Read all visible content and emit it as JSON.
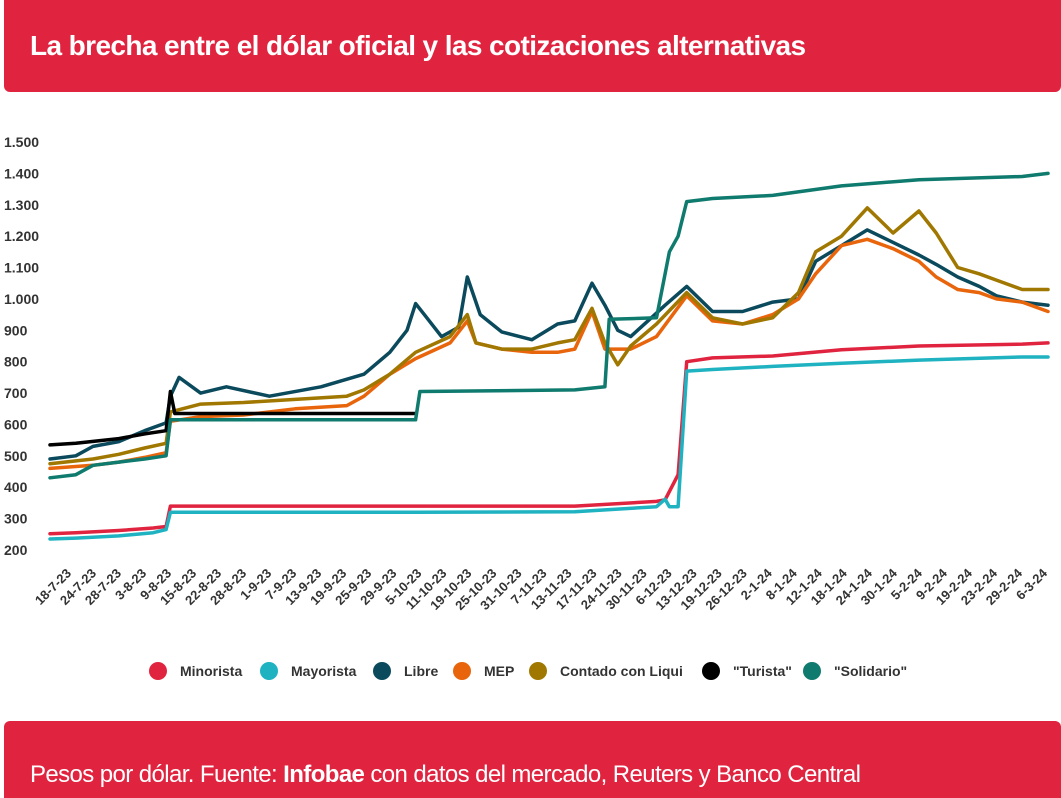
{
  "header": {
    "title": "La brecha entre el dólar oficial y las cotizaciones alternativas"
  },
  "footer": {
    "prefix": "Pesos por dólar. Fuente: ",
    "source": "Infobae",
    "suffix": " con datos del mercado, Reuters y Banco Central"
  },
  "chart_data": {
    "type": "line",
    "title": "La brecha entre el dólar oficial y las cotizaciones alternativas",
    "ylabel": "",
    "xlabel": "",
    "ylim": [
      200,
      1500
    ],
    "yticks": [
      200,
      300,
      400,
      500,
      600,
      700,
      800,
      900,
      1000,
      1100,
      1200,
      1300,
      1400,
      1500
    ],
    "ytick_labels": [
      "200",
      "300",
      "400",
      "500",
      "600",
      "700",
      "800",
      "900",
      "1.000",
      "1.100",
      "1.200",
      "1.300",
      "1.400",
      "1.500"
    ],
    "x_start": "18-7-23",
    "x_end": "6-3-24",
    "x_tick_labels": [
      "18-7-23",
      "24-7-23",
      "28-7-23",
      "3-8-23",
      "9-8-23",
      "15-8-23",
      "22-8-23",
      "28-8-23",
      "1-9-23",
      "7-9-23",
      "13-9-23",
      "19-9-23",
      "25-9-23",
      "29-9-23",
      "5-10-23",
      "11-10-23",
      "19-10-23",
      "25-10-23",
      "31-10-23",
      "7-11-23",
      "13-11-23",
      "17-11-23",
      "24-11-23",
      "30-11-23",
      "6-12-23",
      "13-12-23",
      "19-12-23",
      "26-12-23",
      "2-1-24",
      "8-1-24",
      "12-1-24",
      "18-1-24",
      "24-1-24",
      "30-1-24",
      "5-2-24",
      "9-2-24",
      "19-2-24",
      "23-2-24",
      "29-2-24",
      "6-3-24"
    ],
    "grid": false,
    "legend_position": "bottom",
    "series": [
      {
        "name": "Minorista",
        "color": "#e0243f",
        "points": [
          [
            "18-7-23",
            252
          ],
          [
            "24-7-23",
            255
          ],
          [
            "3-8-23",
            262
          ],
          [
            "11-8-23",
            270
          ],
          [
            "14-8-23",
            275
          ],
          [
            "15-8-23",
            340
          ],
          [
            "11-10-23",
            340
          ],
          [
            "17-11-23",
            340
          ],
          [
            "6-12-23",
            355
          ],
          [
            "8-12-23",
            360
          ],
          [
            "11-12-23",
            440
          ],
          [
            "12-12-23",
            620
          ],
          [
            "13-12-23",
            800
          ],
          [
            "19-12-23",
            812
          ],
          [
            "2-1-24",
            818
          ],
          [
            "18-1-24",
            838
          ],
          [
            "5-2-24",
            850
          ],
          [
            "29-2-24",
            856
          ],
          [
            "6-3-24",
            860
          ]
        ]
      },
      {
        "name": "Mayorista",
        "color": "#1fb2c1",
        "points": [
          [
            "18-7-23",
            235
          ],
          [
            "24-7-23",
            238
          ],
          [
            "3-8-23",
            245
          ],
          [
            "11-8-23",
            255
          ],
          [
            "14-8-23",
            265
          ],
          [
            "15-8-23",
            320
          ],
          [
            "11-10-23",
            320
          ],
          [
            "17-11-23",
            322
          ],
          [
            "6-12-23",
            338
          ],
          [
            "8-12-23",
            362
          ],
          [
            "9-12-23",
            338
          ],
          [
            "11-12-23",
            338
          ],
          [
            "13-12-23",
            770
          ],
          [
            "19-12-23",
            775
          ],
          [
            "2-1-24",
            785
          ],
          [
            "18-1-24",
            795
          ],
          [
            "5-2-24",
            805
          ],
          [
            "29-2-24",
            815
          ],
          [
            "6-3-24",
            815
          ]
        ]
      },
      {
        "name": "Libre",
        "color": "#0a4a5c",
        "points": [
          [
            "18-7-23",
            490
          ],
          [
            "24-7-23",
            500
          ],
          [
            "28-7-23",
            530
          ],
          [
            "3-8-23",
            545
          ],
          [
            "9-8-23",
            580
          ],
          [
            "14-8-23",
            605
          ],
          [
            "15-8-23",
            690
          ],
          [
            "17-8-23",
            750
          ],
          [
            "22-8-23",
            700
          ],
          [
            "28-8-23",
            720
          ],
          [
            "7-9-23",
            690
          ],
          [
            "19-9-23",
            720
          ],
          [
            "29-9-23",
            760
          ],
          [
            "5-10-23",
            830
          ],
          [
            "9-10-23",
            900
          ],
          [
            "11-10-23",
            985
          ],
          [
            "13-10-23",
            950
          ],
          [
            "17-10-23",
            880
          ],
          [
            "21-10-23",
            910
          ],
          [
            "23-10-23",
            1070
          ],
          [
            "26-10-23",
            950
          ],
          [
            "31-10-23",
            895
          ],
          [
            "7-11-23",
            870
          ],
          [
            "13-11-23",
            920
          ],
          [
            "17-11-23",
            930
          ],
          [
            "21-11-23",
            1050
          ],
          [
            "24-11-23",
            980
          ],
          [
            "27-11-23",
            900
          ],
          [
            "30-11-23",
            880
          ],
          [
            "4-12-23",
            930
          ],
          [
            "8-12-23",
            980
          ],
          [
            "13-12-23",
            1040
          ],
          [
            "19-12-23",
            960
          ],
          [
            "26-12-23",
            960
          ],
          [
            "2-1-24",
            990
          ],
          [
            "8-1-24",
            1000
          ],
          [
            "12-1-24",
            1120
          ],
          [
            "18-1-24",
            1170
          ],
          [
            "24-1-24",
            1220
          ],
          [
            "30-1-24",
            1180
          ],
          [
            "5-2-24",
            1140
          ],
          [
            "9-2-24",
            1110
          ],
          [
            "14-2-24",
            1070
          ],
          [
            "19-2-24",
            1040
          ],
          [
            "23-2-24",
            1010
          ],
          [
            "29-2-24",
            990
          ],
          [
            "6-3-24",
            980
          ]
        ]
      },
      {
        "name": "MEP",
        "color": "#e8650c",
        "points": [
          [
            "18-7-23",
            460
          ],
          [
            "28-7-23",
            470
          ],
          [
            "3-8-23",
            480
          ],
          [
            "9-8-23",
            495
          ],
          [
            "14-8-23",
            510
          ],
          [
            "15-8-23",
            610
          ],
          [
            "22-8-23",
            625
          ],
          [
            "1-9-23",
            630
          ],
          [
            "13-9-23",
            650
          ],
          [
            "25-9-23",
            660
          ],
          [
            "29-9-23",
            690
          ],
          [
            "5-10-23",
            760
          ],
          [
            "11-10-23",
            810
          ],
          [
            "19-10-23",
            860
          ],
          [
            "23-10-23",
            930
          ],
          [
            "25-10-23",
            860
          ],
          [
            "31-10-23",
            840
          ],
          [
            "7-11-23",
            830
          ],
          [
            "13-11-23",
            830
          ],
          [
            "17-11-23",
            840
          ],
          [
            "21-11-23",
            960
          ],
          [
            "24-11-23",
            840
          ],
          [
            "30-11-23",
            840
          ],
          [
            "6-12-23",
            880
          ],
          [
            "13-12-23",
            1010
          ],
          [
            "19-12-23",
            930
          ],
          [
            "26-12-23",
            920
          ],
          [
            "2-1-24",
            950
          ],
          [
            "8-1-24",
            1000
          ],
          [
            "12-1-24",
            1080
          ],
          [
            "18-1-24",
            1170
          ],
          [
            "24-1-24",
            1190
          ],
          [
            "30-1-24",
            1160
          ],
          [
            "5-2-24",
            1120
          ],
          [
            "9-2-24",
            1070
          ],
          [
            "14-2-24",
            1030
          ],
          [
            "19-2-24",
            1020
          ],
          [
            "23-2-24",
            1000
          ],
          [
            "29-2-24",
            990
          ],
          [
            "6-3-24",
            960
          ]
        ]
      },
      {
        "name": "Contado con Liqui",
        "color": "#a07700",
        "points": [
          [
            "18-7-23",
            475
          ],
          [
            "28-7-23",
            490
          ],
          [
            "3-8-23",
            505
          ],
          [
            "9-8-23",
            525
          ],
          [
            "14-8-23",
            540
          ],
          [
            "15-8-23",
            640
          ],
          [
            "22-8-23",
            665
          ],
          [
            "1-9-23",
            670
          ],
          [
            "13-9-23",
            680
          ],
          [
            "25-9-23",
            690
          ],
          [
            "29-9-23",
            710
          ],
          [
            "5-10-23",
            760
          ],
          [
            "11-10-23",
            830
          ],
          [
            "19-10-23",
            880
          ],
          [
            "23-10-23",
            950
          ],
          [
            "25-10-23",
            860
          ],
          [
            "31-10-23",
            840
          ],
          [
            "7-11-23",
            840
          ],
          [
            "13-11-23",
            860
          ],
          [
            "17-11-23",
            870
          ],
          [
            "21-11-23",
            970
          ],
          [
            "24-11-23",
            860
          ],
          [
            "27-11-23",
            790
          ],
          [
            "30-11-23",
            850
          ],
          [
            "6-12-23",
            920
          ],
          [
            "13-12-23",
            1020
          ],
          [
            "19-12-23",
            940
          ],
          [
            "26-12-23",
            920
          ],
          [
            "2-1-24",
            940
          ],
          [
            "8-1-24",
            1020
          ],
          [
            "12-1-24",
            1150
          ],
          [
            "18-1-24",
            1200
          ],
          [
            "24-1-24",
            1290
          ],
          [
            "30-1-24",
            1210
          ],
          [
            "5-2-24",
            1280
          ],
          [
            "9-2-24",
            1210
          ],
          [
            "14-2-24",
            1100
          ],
          [
            "19-2-24",
            1080
          ],
          [
            "23-2-24",
            1060
          ],
          [
            "29-2-24",
            1030
          ],
          [
            "6-3-24",
            1030
          ]
        ]
      },
      {
        "name": "\"Turista\"",
        "color": "#000000",
        "points": [
          [
            "18-7-23",
            535
          ],
          [
            "24-7-23",
            540
          ],
          [
            "3-8-23",
            555
          ],
          [
            "9-8-23",
            570
          ],
          [
            "14-8-23",
            580
          ],
          [
            "15-8-23",
            705
          ],
          [
            "16-8-23",
            635
          ],
          [
            "11-10-23",
            635
          ]
        ]
      },
      {
        "name": "\"Solidario\"",
        "color": "#0f7a6e",
        "points": [
          [
            "18-7-23",
            430
          ],
          [
            "24-7-23",
            440
          ],
          [
            "28-7-23",
            470
          ],
          [
            "3-8-23",
            480
          ],
          [
            "9-8-23",
            490
          ],
          [
            "14-8-23",
            500
          ],
          [
            "15-8-23",
            615
          ],
          [
            "28-8-23",
            615
          ],
          [
            "11-10-23",
            615
          ],
          [
            "12-10-23",
            705
          ],
          [
            "17-11-23",
            710
          ],
          [
            "24-11-23",
            720
          ],
          [
            "25-11-23",
            935
          ],
          [
            "6-12-23",
            940
          ],
          [
            "9-12-23",
            1150
          ],
          [
            "11-12-23",
            1200
          ],
          [
            "13-12-23",
            1310
          ],
          [
            "19-12-23",
            1320
          ],
          [
            "2-1-24",
            1330
          ],
          [
            "18-1-24",
            1360
          ],
          [
            "5-2-24",
            1380
          ],
          [
            "29-2-24",
            1390
          ],
          [
            "6-3-24",
            1400
          ]
        ]
      }
    ]
  }
}
